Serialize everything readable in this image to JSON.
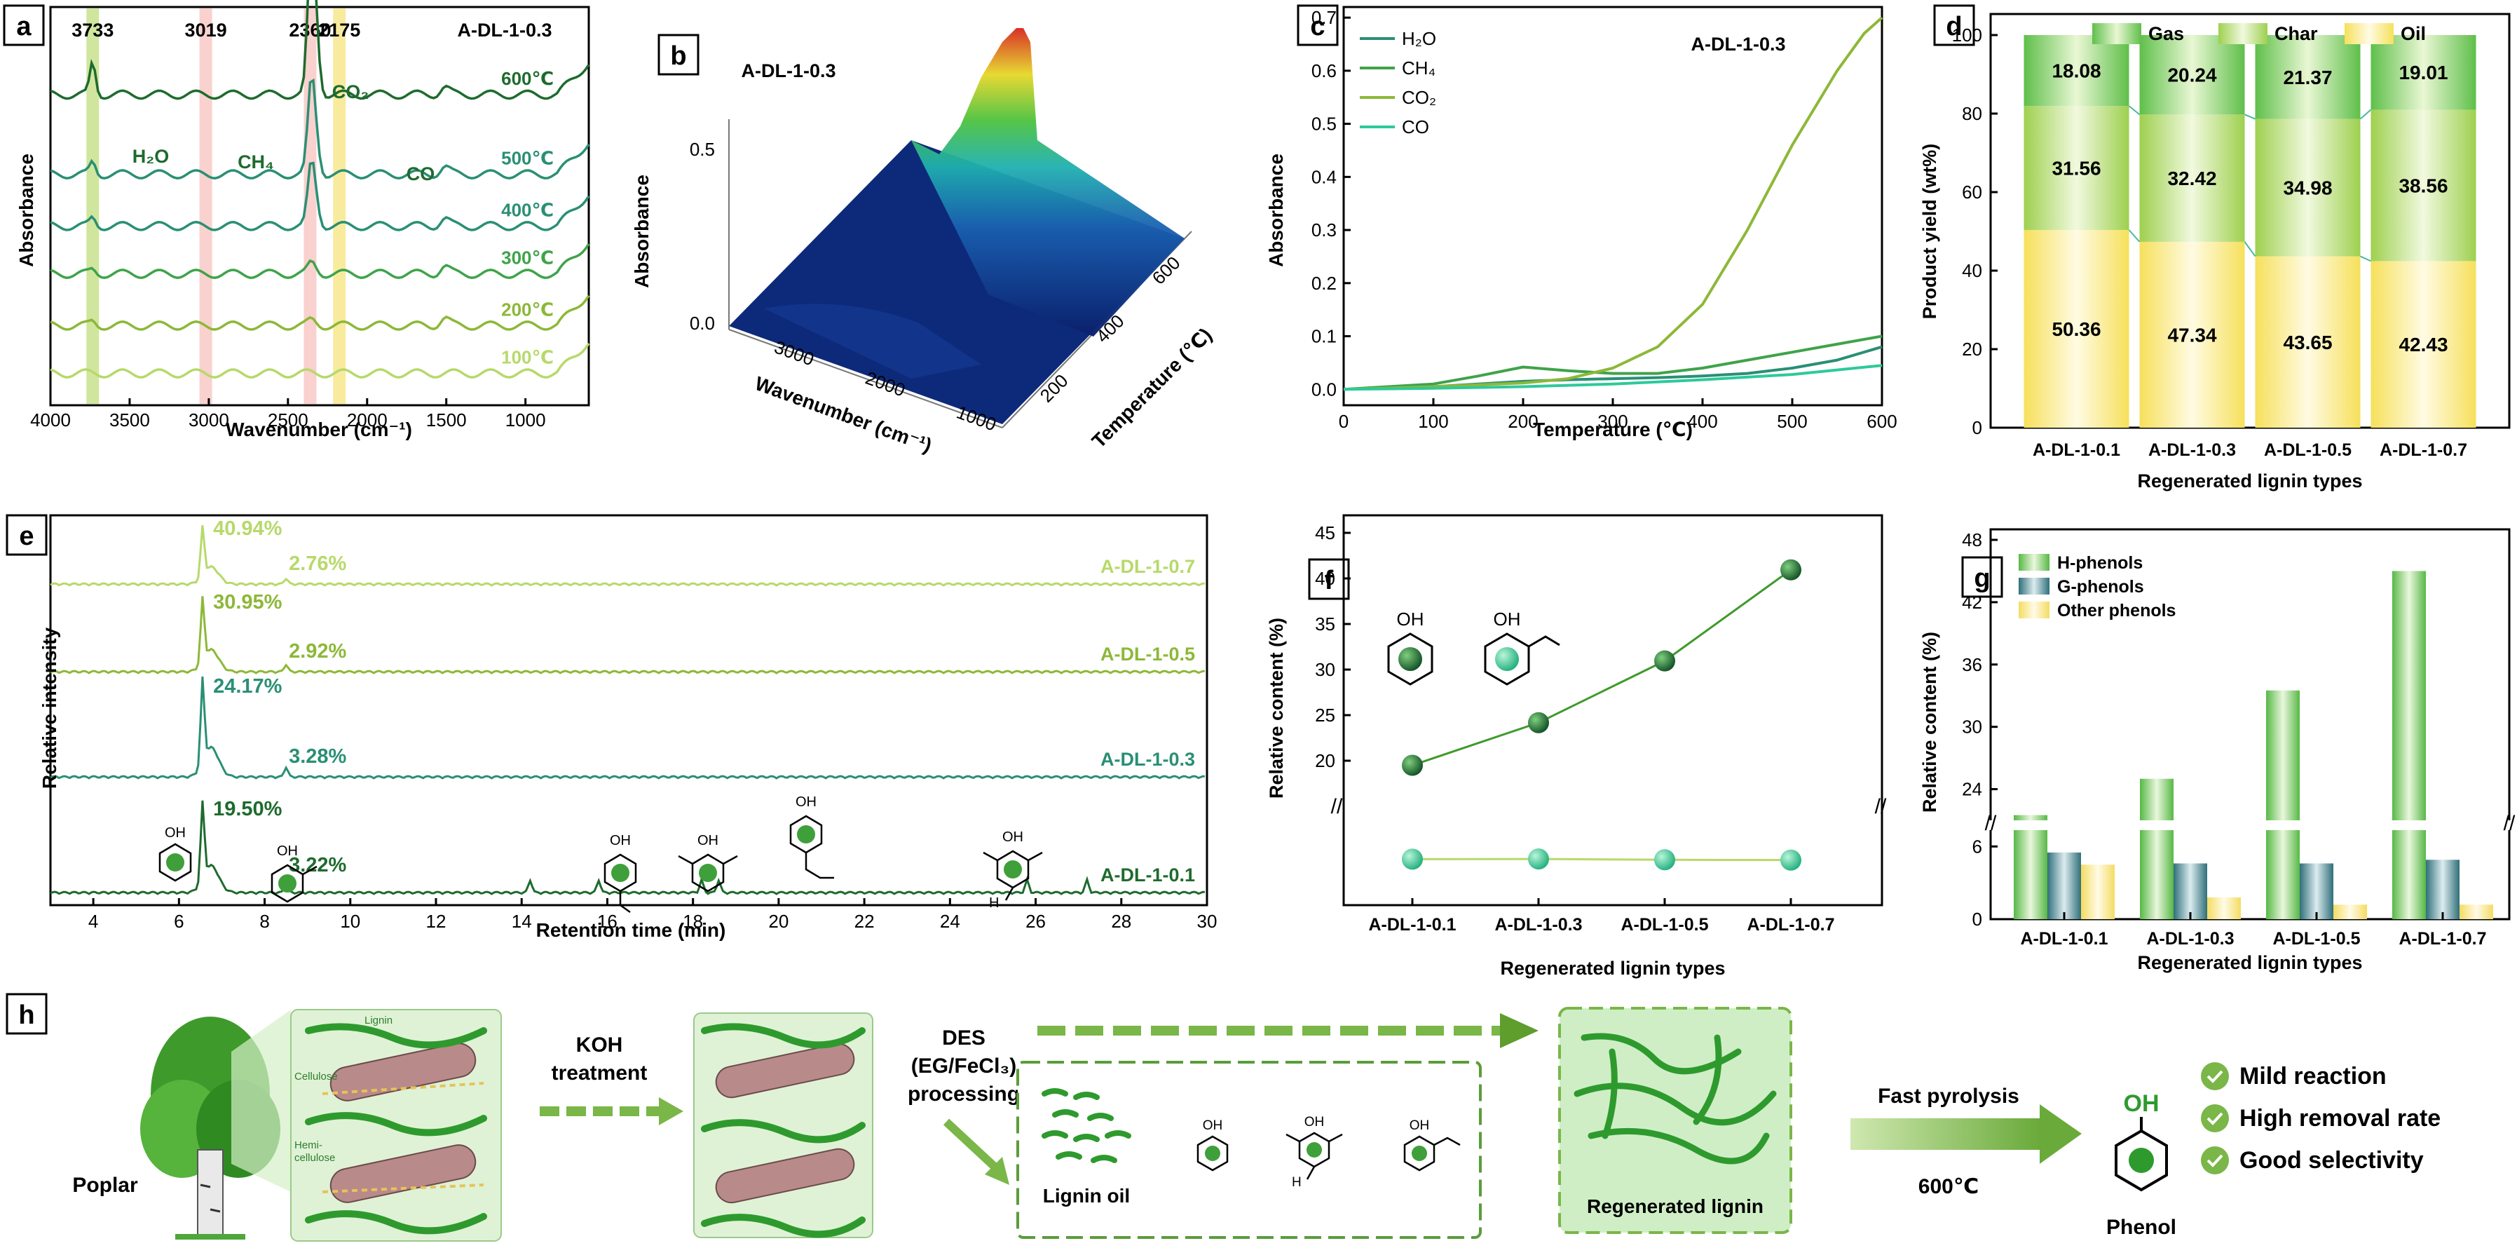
{
  "figure": {
    "panel_labels": [
      "a",
      "b",
      "c",
      "d",
      "e",
      "f",
      "g",
      "h"
    ]
  },
  "colors": {
    "dark_green": "#1e6b2e",
    "teal": "#2a8f74",
    "mid_green": "#3fa34a",
    "olive": "#8db838",
    "lime": "#b7d96a",
    "pale": "#d9ecb0",
    "cyan": "#2ec99a",
    "yellow": "#f4e06a",
    "pink": "#f6b9b3",
    "slate": "#2f6f7a"
  },
  "chart_data": [
    {
      "id": "a",
      "type": "line",
      "title": "A-DL-1-0.3",
      "xlabel": "Wavenumber (cm⁻¹)",
      "ylabel": "Absorbance",
      "xlim": [
        4000,
        600
      ],
      "xticks": [
        "4000",
        "3500",
        "3000",
        "2500",
        "2000",
        "1500",
        "1000"
      ],
      "bands": [
        {
          "label": "3733",
          "x": 3733,
          "color": "lime"
        },
        {
          "label": "3019",
          "x": 3019,
          "color": "pink"
        },
        {
          "label": "2360",
          "x": 2360,
          "color": "pink"
        },
        {
          "label": "2175",
          "x": 2175,
          "color": "yellow"
        }
      ],
      "annotations": [
        "H₂O",
        "CH₄",
        "CO₂",
        "CO"
      ],
      "series": [
        {
          "name": "600℃",
          "color": "dark_green",
          "offset": 0.78,
          "co2": 0.3,
          "h2o": 0.08
        },
        {
          "name": "500℃",
          "color": "teal",
          "offset": 0.58,
          "co2": 0.18,
          "h2o": 0.03
        },
        {
          "name": "400℃",
          "color": "teal",
          "offset": 0.45,
          "co2": 0.12,
          "h2o": 0.02
        },
        {
          "name": "300℃",
          "color": "mid_green",
          "offset": 0.33,
          "co2": 0.02,
          "h2o": 0.01
        },
        {
          "name": "200℃",
          "color": "olive",
          "offset": 0.2,
          "co2": 0.01,
          "h2o": 0.01
        },
        {
          "name": "100℃",
          "color": "lime",
          "offset": 0.08,
          "co2": 0.0,
          "h2o": 0.0
        }
      ]
    },
    {
      "id": "b",
      "type": "surface3d",
      "title": "A-DL-1-0.3",
      "xlabel": "Wavenumber (cm⁻¹)",
      "ylabel": "Temperature (℃)",
      "zlabel": "Absorbance",
      "xticks": [
        "3000",
        "2000",
        "1000"
      ],
      "yticks": [
        "200",
        "400",
        "600"
      ],
      "zticks": [
        "0.0",
        "0.5"
      ]
    },
    {
      "id": "c",
      "type": "line",
      "title": "A-DL-1-0.3",
      "xlabel": "Temperature (℃)",
      "ylabel": "Absorbance",
      "xlim": [
        0,
        600
      ],
      "ylim": [
        -0.03,
        0.72
      ],
      "xticks": [
        0,
        100,
        200,
        300,
        400,
        500,
        600
      ],
      "yticks": [
        0.0,
        0.1,
        0.2,
        0.3,
        0.4,
        0.5,
        0.6,
        0.7
      ],
      "legend": [
        "H₂O",
        "CH₄",
        "CO₂",
        "CO"
      ],
      "series": [
        {
          "name": "H₂O",
          "color": "teal",
          "x": [
            0,
            100,
            150,
            200,
            250,
            300,
            350,
            400,
            450,
            500,
            550,
            600
          ],
          "y": [
            0.0,
            0.005,
            0.01,
            0.015,
            0.018,
            0.02,
            0.022,
            0.025,
            0.03,
            0.04,
            0.055,
            0.08
          ]
        },
        {
          "name": "CH₄",
          "color": "mid_green",
          "x": [
            0,
            100,
            150,
            200,
            250,
            300,
            350,
            400,
            450,
            500,
            550,
            600
          ],
          "y": [
            0.0,
            0.01,
            0.025,
            0.042,
            0.035,
            0.03,
            0.03,
            0.04,
            0.055,
            0.07,
            0.085,
            0.1
          ]
        },
        {
          "name": "CO₂",
          "color": "olive",
          "x": [
            0,
            100,
            200,
            250,
            300,
            350,
            400,
            450,
            500,
            550,
            580,
            600
          ],
          "y": [
            0.0,
            0.005,
            0.012,
            0.02,
            0.04,
            0.08,
            0.16,
            0.3,
            0.46,
            0.6,
            0.67,
            0.7
          ]
        },
        {
          "name": "CO",
          "color": "cyan",
          "x": [
            0,
            100,
            200,
            300,
            400,
            500,
            600
          ],
          "y": [
            0.0,
            0.002,
            0.005,
            0.01,
            0.018,
            0.028,
            0.045
          ]
        }
      ]
    },
    {
      "id": "d",
      "type": "bar",
      "stacked": true,
      "xlabel": "Regenerated lignin types",
      "ylabel": "Product yield (wt%)",
      "ylim": [
        0,
        100
      ],
      "yticks": [
        0,
        20,
        40,
        60,
        80,
        100
      ],
      "legend": [
        "Gas",
        "Char",
        "Oil"
      ],
      "categories": [
        "A-DL-1-0.1",
        "A-DL-1-0.3",
        "A-DL-1-0.5",
        "A-DL-1-0.7"
      ],
      "series": [
        {
          "name": "Oil",
          "values": [
            50.36,
            47.34,
            43.65,
            42.43
          ],
          "labels": [
            "50.36",
            "47.34",
            "43.65",
            "42.43"
          ]
        },
        {
          "name": "Char",
          "values": [
            31.56,
            32.42,
            34.98,
            38.56
          ],
          "labels": [
            "31.56",
            "32.42",
            "34.98",
            "38.56"
          ]
        },
        {
          "name": "Gas",
          "values": [
            18.08,
            20.24,
            21.37,
            19.01
          ],
          "labels": [
            "18.08",
            "20.24",
            "21.37",
            "19.01"
          ]
        }
      ]
    },
    {
      "id": "e",
      "type": "line",
      "xlabel": "Retention time (min)",
      "ylabel": "Relative intensity",
      "xlim": [
        3,
        30
      ],
      "xticks": [
        4,
        6,
        8,
        10,
        12,
        14,
        16,
        18,
        20,
        22,
        24,
        26,
        28,
        30
      ],
      "series": [
        {
          "name": "A-DL-1-0.7",
          "color": "lime",
          "phenol": "40.94%",
          "guaiacol": "2.76%"
        },
        {
          "name": "A-DL-1-0.5",
          "color": "olive",
          "phenol": "30.95%",
          "guaiacol": "2.92%"
        },
        {
          "name": "A-DL-1-0.3",
          "color": "teal",
          "phenol": "24.17%",
          "guaiacol": "3.28%"
        },
        {
          "name": "A-DL-1-0.1",
          "color": "dark_green",
          "phenol": "19.50%",
          "guaiacol": "3.22%"
        }
      ]
    },
    {
      "id": "f",
      "type": "line",
      "xlabel": "Regenerated lignin types",
      "ylabel": "Relative content (%)",
      "categories": [
        "A-DL-1-0.1",
        "A-DL-1-0.3",
        "A-DL-1-0.5",
        "A-DL-1-0.7"
      ],
      "yticks": [
        "20",
        "25",
        "30",
        "35",
        "40",
        "45"
      ],
      "series": [
        {
          "name": "Phenol",
          "color": "dark_green",
          "values": [
            19.5,
            24.17,
            30.95,
            40.94
          ]
        },
        {
          "name": "Guaiacol",
          "color": "cyan",
          "values": [
            3.22,
            3.28,
            2.92,
            2.76
          ]
        }
      ]
    },
    {
      "id": "g",
      "type": "bar",
      "xlabel": "Regenerated lignin types",
      "ylabel": "Relative content (%)",
      "yticks": [
        "0",
        "6",
        "24",
        "30",
        "36",
        "42",
        "48"
      ],
      "legend": [
        "H-phenols",
        "G-phenols",
        "Other phenols"
      ],
      "categories": [
        "A-DL-1-0.1",
        "A-DL-1-0.3",
        "A-DL-1-0.5",
        "A-DL-1-0.7"
      ],
      "series": [
        {
          "name": "H-phenols",
          "color": "mid_green",
          "values": [
            21.5,
            25.0,
            33.5,
            45.0
          ]
        },
        {
          "name": "G-phenols",
          "color": "slate",
          "values": [
            5.5,
            4.6,
            4.6,
            4.9
          ]
        },
        {
          "name": "Other phenols",
          "color": "yellow",
          "values": [
            4.5,
            1.8,
            1.2,
            1.2
          ]
        }
      ]
    }
  ],
  "scheme": {
    "poplar": "Poplar",
    "lignin": "Lignin",
    "cellulose": "Cellulose",
    "hemi1": "Hemi-",
    "hemi2": "cellulose",
    "koh1": "KOH",
    "koh2": "treatment",
    "des1": "DES",
    "des2": "(EG/FeCl₃)",
    "des3": "processing",
    "oil": "Lignin oil",
    "regen": "Regenerated lignin",
    "fast": "Fast pyrolysis",
    "temp": "600℃",
    "phenol": "Phenol",
    "oh": "OH",
    "benefits": [
      "Mild reaction",
      "High removal rate",
      "Good selectivity"
    ]
  }
}
